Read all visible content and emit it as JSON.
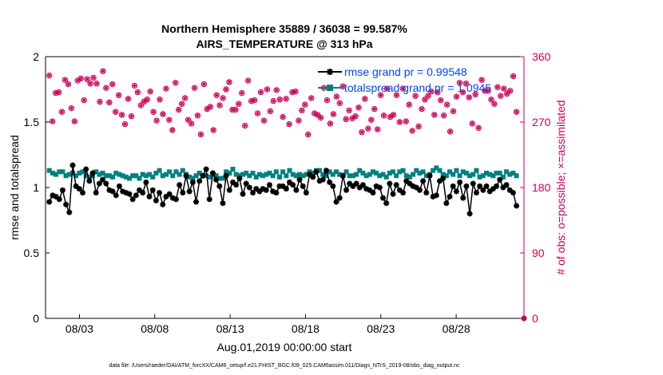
{
  "chart_data": {
    "type": "line",
    "title_line1": "Northern Hemisphere 35889 / 36038 = 99.587%",
    "title_line2": "AIRS_TEMPERATURE @ 313 hPa",
    "xlabel": "Aug.01,2019 00:00:00 start",
    "ylabel_left": "rmse and totalspread",
    "ylabel_right": "# of obs: o=possible; ×=assimilated",
    "xlim": [
      0.75,
      32.5
    ],
    "ylim_left": [
      0,
      2
    ],
    "ylim_right": [
      0,
      360
    ],
    "x_ticks": [
      3,
      8,
      13,
      18,
      23,
      28
    ],
    "x_tick_labels": [
      "08/03",
      "08/08",
      "08/13",
      "08/18",
      "08/23",
      "08/28"
    ],
    "y_left_ticks": [
      0,
      0.5,
      1,
      1.5,
      2
    ],
    "y_left_tick_labels": [
      "0",
      "0.5",
      "1",
      "1.5",
      "2"
    ],
    "y_right_ticks": [
      0,
      90,
      180,
      270,
      360
    ],
    "y_right_tick_labels": [
      "0",
      "90",
      "180",
      "270",
      "360"
    ],
    "legend_position": "top-right",
    "colors": {
      "rmse": "#000000",
      "totalspread": "#008080",
      "obs": "#cc0055"
    },
    "footnote": "data file: /Users/raeder/DAI/ATM_forcXX/CAM6_setup/f.e21.FHIST_BGC.f09_025.CAM6assim.011/Diags_NTrS_2019-08/obs_diag_output.nc",
    "series": [
      {
        "name": "rmse",
        "legend": "rmse grand pr = 0.99548",
        "axis": "left",
        "values": [
          0.89,
          0.94,
          0.93,
          0.91,
          0.98,
          0.87,
          0.81,
          1.17,
          1.01,
          0.99,
          0.96,
          1.14,
          1.05,
          1.11,
          0.96,
          1.03,
          1.06,
          1.03,
          0.98,
          0.97,
          0.94,
          1.01,
          0.97,
          0.96,
          0.95,
          0.91,
          0.94,
          0.98,
          0.96,
          1.04,
          0.93,
          0.98,
          0.9,
          0.96,
          0.87,
          0.93,
          0.95,
          0.92,
          0.91,
          1.02,
          0.96,
          1.09,
          0.97,
          1.04,
          0.89,
          1.05,
          1.09,
          1.14,
          0.91,
          1.11,
          1.06,
          1.01,
          0.88,
          1.09,
          0.98,
          1.04,
          1.02,
          1.07,
          0.95,
          1.03,
          1.0,
          0.96,
          0.99,
          0.97,
          0.99,
          0.98,
          1.02,
          0.97,
          0.96,
          1.01,
          1.01,
          0.99,
          1.04,
          1.02,
          0.98,
          1.06,
          1.01,
          0.96,
          1.1,
          1.08,
          1.12,
          1.05,
          1.06,
          1.13,
          1.04,
          1.01,
          0.89,
          0.92,
          1.09,
          0.98,
          1.03,
          1.01,
          1.03,
          1.0,
          1.02,
          0.99,
          0.98,
          0.96,
          1.01,
          1.0,
          0.92,
          0.88,
          1.03,
          0.95,
          1.02,
          0.98,
          0.96,
          1.05,
          1.03,
          1.01,
          1.0,
          0.98,
          1.05,
          0.96,
          1.09,
          0.93,
          0.94,
          1.05,
          1.07,
          0.88,
          0.93,
          1.01,
          0.97,
          1.04,
          0.92,
          1.01,
          0.8,
          1.03,
          0.96,
          1.01,
          0.98,
          1.01,
          0.97,
          0.99,
          1.01,
          1.06,
          1.0,
          1.02,
          0.98,
          0.96,
          0.86
        ]
      },
      {
        "name": "totalspread",
        "legend": "totalspread grand pr = 1.0945",
        "axis": "left",
        "values": [
          1.13,
          1.11,
          1.1,
          1.12,
          1.12,
          1.09,
          1.1,
          1.11,
          1.09,
          1.11,
          1.12,
          1.09,
          1.08,
          1.09,
          1.12,
          1.1,
          1.11,
          1.09,
          1.09,
          1.08,
          1.11,
          1.1,
          1.09,
          1.08,
          1.07,
          1.09,
          1.09,
          1.07,
          1.1,
          1.09,
          1.1,
          1.08,
          1.11,
          1.13,
          1.09,
          1.1,
          1.12,
          1.09,
          1.12,
          1.1,
          1.13,
          1.1,
          1.08,
          1.07,
          1.09,
          1.11,
          1.09,
          1.09,
          1.08,
          1.1,
          1.09,
          1.07,
          1.07,
          1.12,
          1.11,
          1.14,
          1.1,
          1.09,
          1.1,
          1.11,
          1.09,
          1.11,
          1.08,
          1.1,
          1.09,
          1.1,
          1.11,
          1.09,
          1.12,
          1.08,
          1.12,
          1.09,
          1.13,
          1.1,
          1.09,
          1.1,
          1.09,
          1.1,
          1.12,
          1.11,
          1.13,
          1.13,
          1.1,
          1.09,
          1.12,
          1.1,
          1.12,
          1.1,
          1.09,
          1.12,
          1.09,
          1.09,
          1.1,
          1.13,
          1.11,
          1.09,
          1.1,
          1.12,
          1.11,
          1.09,
          1.1,
          1.08,
          1.11,
          1.12,
          1.09,
          1.12,
          1.13,
          1.09,
          1.08,
          1.1,
          1.13,
          1.11,
          1.12,
          1.09,
          1.1,
          1.13,
          1.15,
          1.13,
          1.1,
          1.09,
          1.12,
          1.1,
          1.13,
          1.09,
          1.12,
          1.11,
          1.09,
          1.1,
          1.13,
          1.08,
          1.09,
          1.11,
          1.1,
          1.09,
          1.11,
          1.11,
          1.08,
          1.12,
          1.1,
          1.11,
          1.09
        ]
      },
      {
        "name": "obs",
        "axis": "right",
        "marker": "circle+star",
        "values": [
          334,
          271,
          310,
          311,
          284,
          328,
          322,
          289,
          271,
          327,
          330,
          300,
          329,
          323,
          331,
          323,
          298,
          340,
          317,
          297,
          322,
          284,
          307,
          280,
          267,
          302,
          278,
          320,
          311,
          293,
          298,
          301,
          312,
          284,
          272,
          301,
          281,
          316,
          273,
          259,
          324,
          287,
          295,
          303,
          273,
          268,
          317,
          279,
          253,
          322,
          288,
          291,
          259,
          307,
          293,
          303,
          315,
          325,
          287,
          287,
          295,
          310,
          265,
          327,
          299,
          300,
          282,
          311,
          272,
          315,
          285,
          299,
          314,
          301,
          277,
          302,
          267,
          311,
          312,
          272,
          286,
          294,
          253,
          303,
          282,
          280,
          276,
          317,
          300,
          268,
          281,
          305,
          296,
          319,
          274,
          286,
          275,
          278,
          290,
          256,
          302,
          261,
          273,
          288,
          260,
          307,
          279,
          316,
          277,
          280,
          307,
          270,
          316,
          271,
          294,
          258,
          306,
          264,
          288,
          301,
          306,
          312,
          280,
          311,
          300,
          279,
          294,
          257,
          285,
          305,
          324,
          311,
          323,
          304,
          268,
          308,
          262,
          328,
          313,
          313,
          301,
          295,
          318,
          306,
          316,
          309,
          313,
          333,
          284
        ]
      }
    ]
  }
}
